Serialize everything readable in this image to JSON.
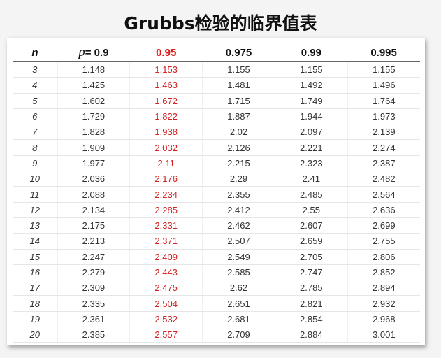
{
  "title": "Grubbs检验的临界值表",
  "header": {
    "n": "n",
    "p_symbol": "p",
    "p_eq": "= 0.9",
    "levels": [
      "0.95",
      "0.975",
      "0.99",
      "0.995"
    ]
  },
  "highlight_color": "#e01818",
  "rows": [
    {
      "n": "3",
      "v": [
        "1.148",
        "1.153",
        "1.155",
        "1.155",
        "1.155"
      ]
    },
    {
      "n": "4",
      "v": [
        "1.425",
        "1.463",
        "1.481",
        "1.492",
        "1.496"
      ]
    },
    {
      "n": "5",
      "v": [
        "1.602",
        "1.672",
        "1.715",
        "1.749",
        "1.764"
      ]
    },
    {
      "n": "6",
      "v": [
        "1.729",
        "1.822",
        "1.887",
        "1.944",
        "1.973"
      ]
    },
    {
      "n": "7",
      "v": [
        "1.828",
        "1.938",
        "2.02",
        "2.097",
        "2.139"
      ]
    },
    {
      "n": "8",
      "v": [
        "1.909",
        "2.032",
        "2.126",
        "2.221",
        "2.274"
      ]
    },
    {
      "n": "9",
      "v": [
        "1.977",
        "2.11",
        "2.215",
        "2.323",
        "2.387"
      ]
    },
    {
      "n": "10",
      "v": [
        "2.036",
        "2.176",
        "2.29",
        "2.41",
        "2.482"
      ]
    },
    {
      "n": "11",
      "v": [
        "2.088",
        "2.234",
        "2.355",
        "2.485",
        "2.564"
      ]
    },
    {
      "n": "12",
      "v": [
        "2.134",
        "2.285",
        "2.412",
        "2.55",
        "2.636"
      ]
    },
    {
      "n": "13",
      "v": [
        "2.175",
        "2.331",
        "2.462",
        "2.607",
        "2.699"
      ]
    },
    {
      "n": "14",
      "v": [
        "2.213",
        "2.371",
        "2.507",
        "2.659",
        "2.755"
      ]
    },
    {
      "n": "15",
      "v": [
        "2.247",
        "2.409",
        "2.549",
        "2.705",
        "2.806"
      ]
    },
    {
      "n": "16",
      "v": [
        "2.279",
        "2.443",
        "2.585",
        "2.747",
        "2.852"
      ]
    },
    {
      "n": "17",
      "v": [
        "2.309",
        "2.475",
        "2.62",
        "2.785",
        "2.894"
      ]
    },
    {
      "n": "18",
      "v": [
        "2.335",
        "2.504",
        "2.651",
        "2.821",
        "2.932"
      ]
    },
    {
      "n": "19",
      "v": [
        "2.361",
        "2.532",
        "2.681",
        "2.854",
        "2.968"
      ]
    },
    {
      "n": "20",
      "v": [
        "2.385",
        "2.557",
        "2.709",
        "2.884",
        "3.001"
      ]
    }
  ]
}
